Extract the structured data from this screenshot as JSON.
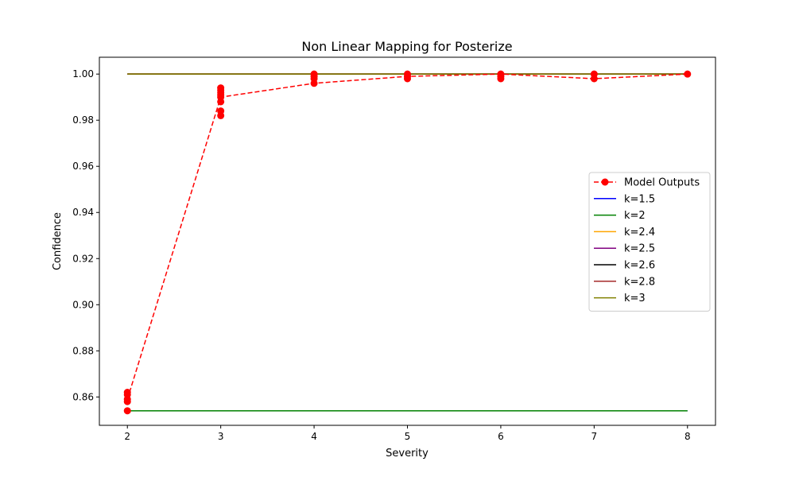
{
  "chart_data": {
    "type": "line",
    "title": "Non Linear Mapping for Posterize",
    "xlabel": "Severity",
    "ylabel": "Confidence",
    "xlim": [
      1.7,
      8.3
    ],
    "ylim": [
      0.8477,
      1.0073
    ],
    "x_ticks": [
      "2",
      "3",
      "4",
      "5",
      "6",
      "7",
      "8"
    ],
    "y_ticks": [
      "0.86",
      "0.88",
      "0.90",
      "0.92",
      "0.94",
      "0.96",
      "0.98",
      "1.00"
    ],
    "grid": false,
    "legend_position": "center-right",
    "scatter_points": {
      "x": [
        2,
        2,
        2,
        2,
        2,
        3,
        3,
        3,
        3,
        3,
        3,
        3,
        3,
        4,
        4,
        4,
        4,
        5,
        5,
        5,
        6,
        6,
        6,
        7,
        7,
        8
      ],
      "y": [
        0.854,
        0.858,
        0.859,
        0.861,
        0.862,
        0.982,
        0.984,
        0.988,
        0.99,
        0.991,
        0.992,
        0.993,
        0.994,
        0.996,
        0.998,
        0.999,
        1.0,
        0.998,
        0.999,
        1.0,
        0.998,
        0.999,
        1.0,
        0.998,
        1.0,
        1.0
      ],
      "color": "#ff0000"
    },
    "series": [
      {
        "name": "Model Outputs",
        "x": [
          2,
          3,
          4,
          5,
          6,
          7,
          8
        ],
        "values": [
          0.859,
          0.99,
          0.996,
          0.999,
          1.0,
          0.998,
          1.0
        ],
        "color": "#ff0000",
        "style": "dashed",
        "marker": "circle"
      },
      {
        "name": "k=1.5",
        "x": [
          2,
          8
        ],
        "values": [
          0.854,
          0.854
        ],
        "color": "#0000ff",
        "style": "solid"
      },
      {
        "name": "k=2",
        "x": [
          2,
          8
        ],
        "values": [
          0.854,
          0.854
        ],
        "color": "#008000",
        "style": "solid"
      },
      {
        "name": "k=2.4",
        "x": [
          2,
          8
        ],
        "values": [
          1.0,
          1.0
        ],
        "color": "#ffa500",
        "style": "solid"
      },
      {
        "name": "k=2.5",
        "x": [
          2,
          8
        ],
        "values": [
          1.0,
          1.0
        ],
        "color": "#800080",
        "style": "solid"
      },
      {
        "name": "k=2.6",
        "x": [
          2,
          8
        ],
        "values": [
          1.0,
          1.0
        ],
        "color": "#000000",
        "style": "solid"
      },
      {
        "name": "k=2.8",
        "x": [
          2,
          8
        ],
        "values": [
          1.0,
          1.0
        ],
        "color": "#a52a2a",
        "style": "solid"
      },
      {
        "name": "k=3",
        "x": [
          2,
          8
        ],
        "values": [
          1.0,
          1.0
        ],
        "color": "#808000",
        "style": "solid"
      }
    ]
  }
}
